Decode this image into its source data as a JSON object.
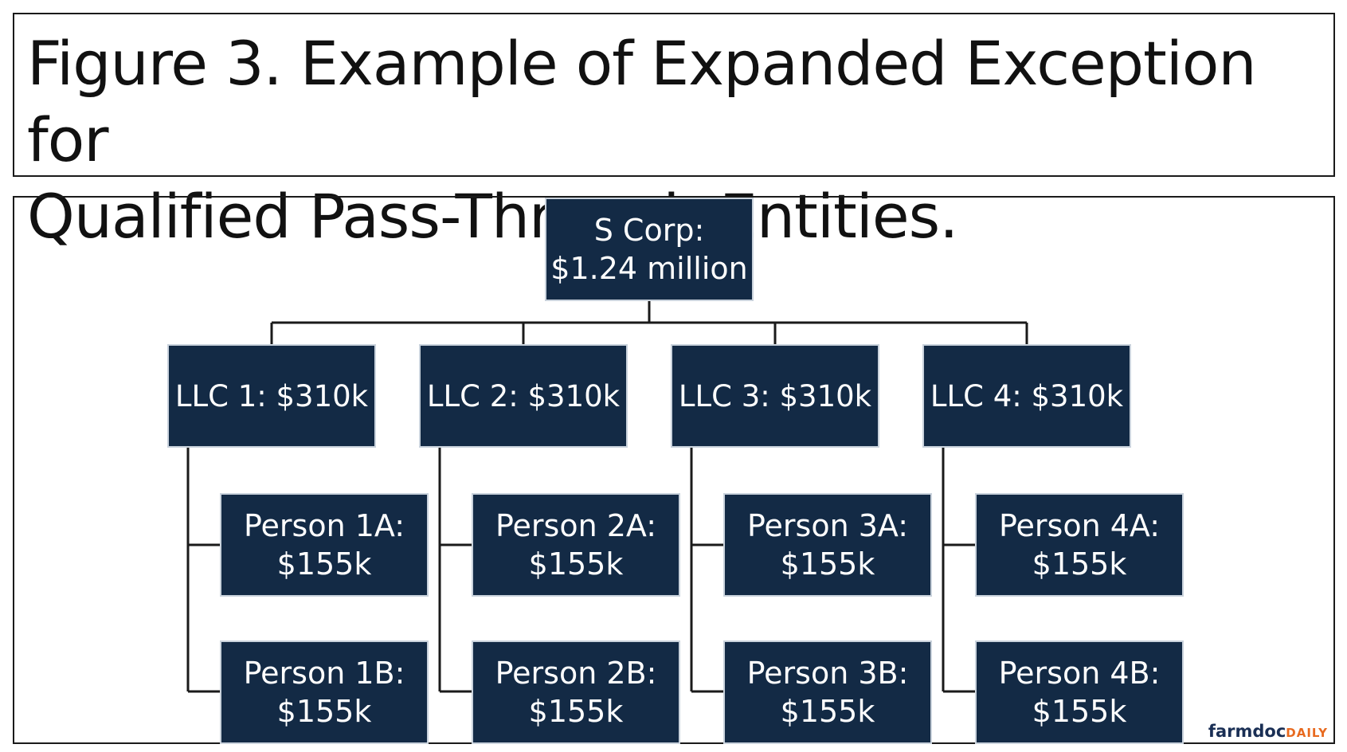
{
  "title": {
    "line1": "Figure 3. Example of Expanded Exception for",
    "line2": "Qualified Pass-Through Entities."
  },
  "root": {
    "line1": "S Corp:",
    "line2": "$1.24 million"
  },
  "llcs": [
    {
      "label": "LLC 1: $310k",
      "people": [
        {
          "line1": "Person 1A:",
          "line2": "$155k"
        },
        {
          "line1": "Person 1B:",
          "line2": "$155k"
        }
      ]
    },
    {
      "label": "LLC 2: $310k",
      "people": [
        {
          "line1": "Person 2A:",
          "line2": "$155k"
        },
        {
          "line1": "Person 2B:",
          "line2": "$155k"
        }
      ]
    },
    {
      "label": "LLC 3: $310k",
      "people": [
        {
          "line1": "Person 3A:",
          "line2": "$155k"
        },
        {
          "line1": "Person 3B:",
          "line2": "$155k"
        }
      ]
    },
    {
      "label": "LLC 4: $310k",
      "people": [
        {
          "line1": "Person 4A:",
          "line2": "$155k"
        },
        {
          "line1": "Person 4B:",
          "line2": "$155k"
        }
      ]
    }
  ],
  "logo": {
    "part1": "farmdoc",
    "part2": "DAILY"
  },
  "colors": {
    "node_fill": "#132a45",
    "node_text": "#ffffff",
    "connector": "#1a1a1a",
    "logo_primary": "#1a2f55",
    "logo_accent": "#e86a1f"
  }
}
